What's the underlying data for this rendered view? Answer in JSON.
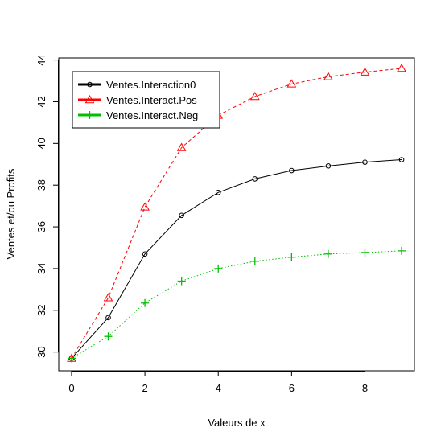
{
  "chart_data": {
    "type": "line",
    "title": "",
    "xlabel": "Valeurs de x",
    "ylabel": "Ventes et/ou Profits",
    "x": [
      0,
      1,
      2,
      3,
      4,
      5,
      6,
      7,
      8,
      9
    ],
    "xlim": [
      -0.35,
      9.35
    ],
    "ylim": [
      29.1,
      44.1
    ],
    "xticks": [
      0,
      2,
      4,
      6,
      8
    ],
    "yticks": [
      30,
      32,
      34,
      36,
      38,
      40,
      42,
      44
    ],
    "grid": false,
    "legend_position": "top-left",
    "series": [
      {
        "name": "Ventes.Interaction0",
        "values": [
          29.7,
          31.65,
          34.7,
          36.55,
          37.65,
          38.3,
          38.7,
          38.92,
          39.1,
          39.22
        ],
        "color": "#000000",
        "line_style": "solid",
        "marker": "circle"
      },
      {
        "name": "Ventes.Interact.Pos",
        "values": [
          29.7,
          32.6,
          36.95,
          39.8,
          41.35,
          42.25,
          42.85,
          43.2,
          43.42,
          43.6
        ],
        "color": "#ff0000",
        "line_style": "dashed",
        "marker": "triangle"
      },
      {
        "name": "Ventes.Interact.Neg",
        "values": [
          29.7,
          30.75,
          32.35,
          33.4,
          34.0,
          34.35,
          34.55,
          34.7,
          34.77,
          34.85
        ],
        "color": "#00c000",
        "line_style": "dotted",
        "marker": "plus"
      }
    ]
  }
}
